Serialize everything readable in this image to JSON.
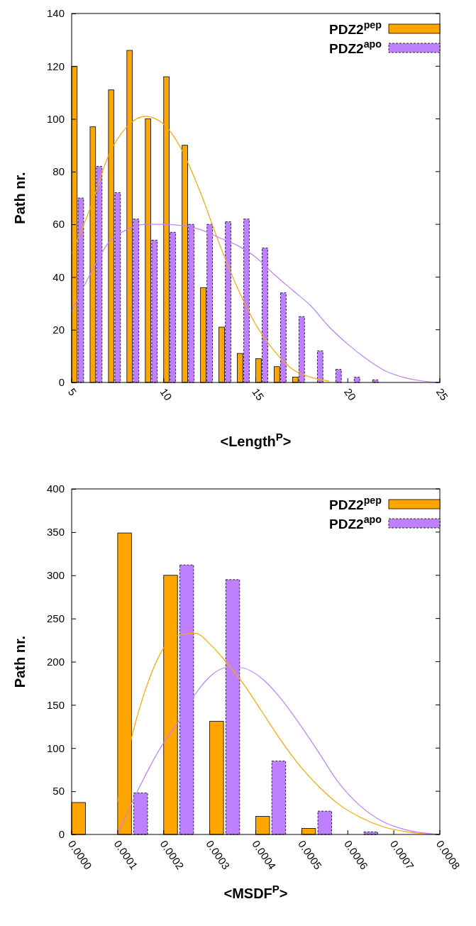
{
  "chart_data": [
    {
      "type": "bar",
      "xlabel": "<Length$^{P}$>",
      "ylabel": "Path nr.",
      "xlim": [
        5,
        25
      ],
      "xticks": [
        5,
        10,
        15,
        20,
        25
      ],
      "ylim": [
        0,
        140
      ],
      "yticks": [
        0,
        20,
        40,
        60,
        80,
        100,
        120,
        140
      ],
      "grid": false,
      "legend": "top right",
      "marker": "none",
      "series": [
        {
          "name": "PDZ2$^{pep}$",
          "type": "bar",
          "color": "#ffa500",
          "line_style": "solid",
          "x": [
            5,
            6,
            7,
            8,
            9,
            10,
            11,
            12,
            13,
            14,
            15,
            16,
            17
          ],
          "values": [
            120,
            97,
            111,
            126,
            100,
            116,
            90,
            36,
            21,
            11,
            9,
            6,
            2
          ]
        },
        {
          "name": "PDZ2$^{apo}$",
          "type": "bar",
          "color": "#bf80ff",
          "line_style": "dashed",
          "x": [
            5,
            6,
            7,
            8,
            9,
            10,
            11,
            12,
            13,
            14,
            15,
            16,
            17,
            18,
            19,
            20,
            21
          ],
          "values": [
            70,
            82,
            72,
            62,
            54,
            57,
            60,
            60,
            61,
            62,
            51,
            34,
            25,
            12,
            5,
            2,
            1
          ]
        },
        {
          "type": "line",
          "color": "#ffa500",
          "x": [
            5,
            6,
            7,
            8,
            9,
            10,
            11,
            12,
            13,
            14,
            15,
            16,
            17,
            18,
            19
          ],
          "values": [
            49,
            66,
            86,
            97,
            101,
            98,
            88,
            72,
            53,
            36,
            22,
            12,
            5,
            2,
            0.5
          ]
        },
        {
          "type": "line",
          "color": "#bf80ff",
          "x": [
            5,
            6,
            7,
            8,
            9,
            10,
            11,
            12,
            13,
            14,
            15,
            16,
            17,
            18,
            19,
            20,
            21,
            22,
            23,
            24,
            25
          ],
          "values": [
            27,
            41,
            53,
            58,
            60,
            60,
            59.5,
            58,
            55,
            52,
            47.5,
            41,
            35,
            29,
            21,
            14.5,
            9,
            4.5,
            2,
            0.6,
            0
          ]
        }
      ]
    },
    {
      "type": "bar",
      "xlabel": "<MSDF$^{P}$>",
      "ylabel": "Path nr.",
      "xlim": [
        0,
        0.0008
      ],
      "xticks": [
        {
          "value": 0,
          "label": "0.0000"
        },
        {
          "value": 0.0001,
          "label": "0.0001"
        },
        {
          "value": 0.0002,
          "label": "0.0002"
        },
        {
          "value": 0.0003,
          "label": "0.0003"
        },
        {
          "value": 0.0004,
          "label": "0.0004"
        },
        {
          "value": 0.0005,
          "label": "0.0005"
        },
        {
          "value": 0.0006,
          "label": "0.0006"
        },
        {
          "value": 0.0007,
          "label": "0.0007"
        },
        {
          "value": 0.0008,
          "label": "0.0008"
        }
      ],
      "ylim": [
        0,
        400
      ],
      "yticks": [
        0,
        50,
        100,
        150,
        200,
        250,
        300,
        350,
        400
      ],
      "grid": false,
      "legend": "top right",
      "marker": "none",
      "series": [
        {
          "name": "PDZ2$^{pep}$",
          "type": "bar",
          "color": "#ffa500",
          "line_style": "solid",
          "x": [
            0,
            0.0001,
            0.0002,
            0.0003,
            0.0004,
            0.0005
          ],
          "values": [
            37,
            349,
            300,
            131,
            21,
            7
          ]
        },
        {
          "name": "PDZ2$^{apo}$",
          "type": "bar",
          "color": "#bf80ff",
          "line_style": "dashed",
          "x": [
            0.0001,
            0.0002,
            0.0003,
            0.0004,
            0.0005,
            0.0006
          ],
          "values": [
            48,
            312,
            295,
            85,
            27,
            3
          ]
        },
        {
          "type": "line",
          "color": "#ffa500",
          "x": [
            0.0001,
            0.000133,
            0.00017,
            0.000204,
            0.000234,
            0.000268,
            0.000303,
            0.000335,
            0.000367,
            0.00041,
            0.000452,
            0.000495,
            0.000538,
            0.00058,
            0.000623,
            0.000676,
            0.000729,
            0.0008
          ],
          "values": [
            38,
            118,
            182,
            219,
            231,
            233,
            219,
            200,
            179,
            145,
            111,
            80,
            55,
            35,
            21,
            9,
            3,
            0
          ]
        },
        {
          "type": "line",
          "color": "#bf80ff",
          "x": [
            0.0001,
            0.000142,
            0.000196,
            0.000234,
            0.000268,
            0.000303,
            0.000335,
            0.000367,
            0.00041,
            0.000452,
            0.000495,
            0.000538,
            0.00058,
            0.000623,
            0.000676,
            0.000729,
            0.0008
          ],
          "values": [
            0,
            49,
            103,
            132,
            162,
            184,
            193,
            193,
            182,
            159,
            128,
            94,
            60,
            35,
            15,
            5,
            0
          ]
        }
      ]
    }
  ]
}
